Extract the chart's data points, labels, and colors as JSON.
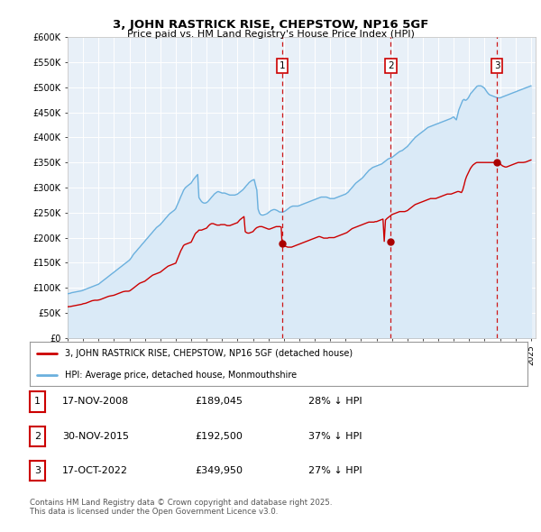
{
  "title": "3, JOHN RASTRICK RISE, CHEPSTOW, NP16 5GF",
  "subtitle": "Price paid vs. HM Land Registry's House Price Index (HPI)",
  "ylim": [
    0,
    600000
  ],
  "ytick_values": [
    0,
    50000,
    100000,
    150000,
    200000,
    250000,
    300000,
    350000,
    400000,
    450000,
    500000,
    550000,
    600000
  ],
  "hpi_color": "#6ab0de",
  "price_color": "#cc0000",
  "marker_box_color": "#cc0000",
  "shade_color": "#daeaf7",
  "plot_bg": "#e8f0f8",
  "grid_color": "#ffffff",
  "transactions": [
    {
      "x": 2008.88,
      "price": 189045,
      "label": "1"
    },
    {
      "x": 2015.92,
      "price": 192500,
      "label": "2"
    },
    {
      "x": 2022.79,
      "price": 349950,
      "label": "3"
    }
  ],
  "legend_line1": "3, JOHN RASTRICK RISE, CHEPSTOW, NP16 5GF (detached house)",
  "legend_line2": "HPI: Average price, detached house, Monmouthshire",
  "footer_line1": "Contains HM Land Registry data © Crown copyright and database right 2025.",
  "footer_line2": "This data is licensed under the Open Government Licence v3.0.",
  "table_rows": [
    [
      "1",
      "17-NOV-2008",
      "£189,045",
      "28% ↓ HPI"
    ],
    [
      "2",
      "30-NOV-2015",
      "£192,500",
      "37% ↓ HPI"
    ],
    [
      "3",
      "17-OCT-2022",
      "£349,950",
      "27% ↓ HPI"
    ]
  ],
  "hpi_x": [
    1995.0,
    1995.08,
    1995.17,
    1995.25,
    1995.33,
    1995.42,
    1995.5,
    1995.58,
    1995.67,
    1995.75,
    1995.83,
    1995.92,
    1996.0,
    1996.08,
    1996.17,
    1996.25,
    1996.33,
    1996.42,
    1996.5,
    1996.58,
    1996.67,
    1996.75,
    1996.83,
    1996.92,
    1997.0,
    1997.08,
    1997.17,
    1997.25,
    1997.33,
    1997.42,
    1997.5,
    1997.58,
    1997.67,
    1997.75,
    1997.83,
    1997.92,
    1998.0,
    1998.08,
    1998.17,
    1998.25,
    1998.33,
    1998.42,
    1998.5,
    1998.58,
    1998.67,
    1998.75,
    1998.83,
    1998.92,
    1999.0,
    1999.08,
    1999.17,
    1999.25,
    1999.33,
    1999.42,
    1999.5,
    1999.58,
    1999.67,
    1999.75,
    1999.83,
    1999.92,
    2000.0,
    2000.08,
    2000.17,
    2000.25,
    2000.33,
    2000.42,
    2000.5,
    2000.58,
    2000.67,
    2000.75,
    2000.83,
    2000.92,
    2001.0,
    2001.08,
    2001.17,
    2001.25,
    2001.33,
    2001.42,
    2001.5,
    2001.58,
    2001.67,
    2001.75,
    2001.83,
    2001.92,
    2002.0,
    2002.08,
    2002.17,
    2002.25,
    2002.33,
    2002.42,
    2002.5,
    2002.58,
    2002.67,
    2002.75,
    2002.83,
    2002.92,
    2003.0,
    2003.08,
    2003.17,
    2003.25,
    2003.33,
    2003.42,
    2003.5,
    2003.58,
    2003.67,
    2003.75,
    2003.83,
    2003.92,
    2004.0,
    2004.08,
    2004.17,
    2004.25,
    2004.33,
    2004.42,
    2004.5,
    2004.58,
    2004.67,
    2004.75,
    2004.83,
    2004.92,
    2005.0,
    2005.08,
    2005.17,
    2005.25,
    2005.33,
    2005.42,
    2005.5,
    2005.58,
    2005.67,
    2005.75,
    2005.83,
    2005.92,
    2006.0,
    2006.08,
    2006.17,
    2006.25,
    2006.33,
    2006.42,
    2006.5,
    2006.58,
    2006.67,
    2006.75,
    2006.83,
    2006.92,
    2007.0,
    2007.08,
    2007.17,
    2007.25,
    2007.33,
    2007.42,
    2007.5,
    2007.58,
    2007.67,
    2007.75,
    2007.83,
    2007.92,
    2008.0,
    2008.08,
    2008.17,
    2008.25,
    2008.33,
    2008.42,
    2008.5,
    2008.58,
    2008.67,
    2008.75,
    2008.83,
    2008.92,
    2009.0,
    2009.08,
    2009.17,
    2009.25,
    2009.33,
    2009.42,
    2009.5,
    2009.58,
    2009.67,
    2009.75,
    2009.83,
    2009.92,
    2010.0,
    2010.08,
    2010.17,
    2010.25,
    2010.33,
    2010.42,
    2010.5,
    2010.58,
    2010.67,
    2010.75,
    2010.83,
    2010.92,
    2011.0,
    2011.08,
    2011.17,
    2011.25,
    2011.33,
    2011.42,
    2011.5,
    2011.58,
    2011.67,
    2011.75,
    2011.83,
    2011.92,
    2012.0,
    2012.08,
    2012.17,
    2012.25,
    2012.33,
    2012.42,
    2012.5,
    2012.58,
    2012.67,
    2012.75,
    2012.83,
    2012.92,
    2013.0,
    2013.08,
    2013.17,
    2013.25,
    2013.33,
    2013.42,
    2013.5,
    2013.58,
    2013.67,
    2013.75,
    2013.83,
    2013.92,
    2014.0,
    2014.08,
    2014.17,
    2014.25,
    2014.33,
    2014.42,
    2014.5,
    2014.58,
    2014.67,
    2014.75,
    2014.83,
    2014.92,
    2015.0,
    2015.08,
    2015.17,
    2015.25,
    2015.33,
    2015.42,
    2015.5,
    2015.58,
    2015.67,
    2015.75,
    2015.83,
    2015.92,
    2016.0,
    2016.08,
    2016.17,
    2016.25,
    2016.33,
    2016.42,
    2016.5,
    2016.58,
    2016.67,
    2016.75,
    2016.83,
    2016.92,
    2017.0,
    2017.08,
    2017.17,
    2017.25,
    2017.33,
    2017.42,
    2017.5,
    2017.58,
    2017.67,
    2017.75,
    2017.83,
    2017.92,
    2018.0,
    2018.08,
    2018.17,
    2018.25,
    2018.33,
    2018.42,
    2018.5,
    2018.58,
    2018.67,
    2018.75,
    2018.83,
    2018.92,
    2019.0,
    2019.08,
    2019.17,
    2019.25,
    2019.33,
    2019.42,
    2019.5,
    2019.58,
    2019.67,
    2019.75,
    2019.83,
    2019.92,
    2020.0,
    2020.08,
    2020.17,
    2020.25,
    2020.33,
    2020.42,
    2020.5,
    2020.58,
    2020.67,
    2020.75,
    2020.83,
    2020.92,
    2021.0,
    2021.08,
    2021.17,
    2021.25,
    2021.33,
    2021.42,
    2021.5,
    2021.58,
    2021.67,
    2021.75,
    2021.83,
    2021.92,
    2022.0,
    2022.08,
    2022.17,
    2022.25,
    2022.33,
    2022.42,
    2022.5,
    2022.58,
    2022.67,
    2022.75,
    2022.83,
    2022.92,
    2023.0,
    2023.08,
    2023.17,
    2023.25,
    2023.33,
    2023.42,
    2023.5,
    2023.58,
    2023.67,
    2023.75,
    2023.83,
    2023.92,
    2024.0,
    2024.08,
    2024.17,
    2024.25,
    2024.33,
    2024.42,
    2024.5,
    2024.58,
    2024.67,
    2024.75,
    2024.83,
    2024.92,
    2025.0
  ],
  "hpi_y": [
    88000,
    88500,
    89000,
    90000,
    90500,
    91000,
    91500,
    92000,
    92500,
    93000,
    93500,
    94000,
    95000,
    96000,
    97000,
    98000,
    99000,
    100000,
    101000,
    102000,
    103000,
    104000,
    105000,
    106000,
    107000,
    109000,
    111000,
    113000,
    115000,
    117000,
    119000,
    121000,
    123000,
    125000,
    127000,
    129000,
    131000,
    133000,
    135000,
    137000,
    139000,
    141000,
    143000,
    145000,
    147000,
    149000,
    151000,
    153000,
    155000,
    158000,
    162000,
    166000,
    169000,
    172000,
    175000,
    178000,
    181000,
    184000,
    187000,
    190000,
    193000,
    196000,
    199000,
    202000,
    205000,
    208000,
    211000,
    214000,
    217000,
    220000,
    222000,
    224000,
    226000,
    229000,
    232000,
    235000,
    238000,
    241000,
    244000,
    247000,
    249000,
    251000,
    253000,
    255000,
    258000,
    264000,
    270000,
    276000,
    282000,
    288000,
    294000,
    298000,
    301000,
    303000,
    305000,
    307000,
    309000,
    313000,
    317000,
    320000,
    323000,
    326000,
    280000,
    276000,
    272000,
    270000,
    269000,
    269000,
    270000,
    272000,
    275000,
    278000,
    281000,
    284000,
    287000,
    289000,
    291000,
    292000,
    291000,
    290000,
    289000,
    289000,
    289000,
    288000,
    287000,
    286000,
    285000,
    285000,
    285000,
    285000,
    285000,
    286000,
    287000,
    289000,
    291000,
    293000,
    295000,
    298000,
    301000,
    304000,
    307000,
    310000,
    312000,
    314000,
    315000,
    316000,
    304000,
    295000,
    257000,
    249000,
    246000,
    245000,
    245000,
    246000,
    247000,
    248000,
    250000,
    252000,
    254000,
    255000,
    256000,
    256000,
    255000,
    254000,
    252000,
    251000,
    251000,
    251000,
    252000,
    253000,
    255000,
    257000,
    259000,
    261000,
    262000,
    263000,
    263000,
    263000,
    263000,
    263000,
    264000,
    265000,
    266000,
    267000,
    268000,
    269000,
    270000,
    271000,
    272000,
    273000,
    274000,
    275000,
    276000,
    277000,
    278000,
    279000,
    280000,
    281000,
    281000,
    281000,
    281000,
    281000,
    280000,
    279000,
    278000,
    278000,
    278000,
    278000,
    279000,
    280000,
    281000,
    282000,
    283000,
    284000,
    285000,
    286000,
    287000,
    289000,
    291000,
    294000,
    297000,
    300000,
    303000,
    306000,
    309000,
    311000,
    313000,
    315000,
    317000,
    319000,
    322000,
    325000,
    328000,
    331000,
    334000,
    336000,
    338000,
    340000,
    341000,
    342000,
    343000,
    344000,
    345000,
    346000,
    347000,
    349000,
    351000,
    353000,
    355000,
    357000,
    358000,
    359000,
    360000,
    362000,
    364000,
    366000,
    368000,
    370000,
    372000,
    373000,
    374000,
    376000,
    378000,
    380000,
    382000,
    385000,
    388000,
    391000,
    394000,
    397000,
    400000,
    402000,
    404000,
    406000,
    408000,
    410000,
    412000,
    414000,
    416000,
    418000,
    420000,
    421000,
    422000,
    423000,
    424000,
    425000,
    426000,
    427000,
    428000,
    429000,
    430000,
    431000,
    432000,
    433000,
    434000,
    435000,
    436000,
    437000,
    438000,
    440000,
    441000,
    438000,
    435000,
    445000,
    455000,
    462000,
    468000,
    474000,
    476000,
    474000,
    475000,
    478000,
    482000,
    487000,
    490000,
    493000,
    496000,
    499000,
    502000,
    503000,
    503000,
    503000,
    502000,
    500000,
    498000,
    494000,
    490000,
    487000,
    485000,
    484000,
    483000,
    482000,
    481000,
    480000,
    479000,
    479000,
    479000,
    480000,
    481000,
    482000,
    483000,
    484000,
    485000,
    486000,
    487000,
    488000,
    489000,
    490000,
    491000,
    492000,
    493000,
    494000,
    495000,
    496000,
    497000,
    498000,
    499000,
    500000,
    501000,
    502000,
    503000
  ],
  "price_x": [
    1995.0,
    1995.08,
    1995.17,
    1995.25,
    1995.33,
    1995.42,
    1995.5,
    1995.58,
    1995.67,
    1995.75,
    1995.83,
    1995.92,
    1996.0,
    1996.08,
    1996.17,
    1996.25,
    1996.33,
    1996.42,
    1996.5,
    1996.58,
    1996.67,
    1996.75,
    1996.83,
    1996.92,
    1997.0,
    1997.08,
    1997.17,
    1997.25,
    1997.33,
    1997.42,
    1997.5,
    1997.58,
    1997.67,
    1997.75,
    1997.83,
    1997.92,
    1998.0,
    1998.08,
    1998.17,
    1998.25,
    1998.33,
    1998.42,
    1998.5,
    1998.58,
    1998.67,
    1998.75,
    1998.83,
    1998.92,
    1999.0,
    1999.08,
    1999.17,
    1999.25,
    1999.33,
    1999.42,
    1999.5,
    1999.58,
    1999.67,
    1999.75,
    1999.83,
    1999.92,
    2000.0,
    2000.08,
    2000.17,
    2000.25,
    2000.33,
    2000.42,
    2000.5,
    2000.58,
    2000.67,
    2000.75,
    2000.83,
    2000.92,
    2001.0,
    2001.08,
    2001.17,
    2001.25,
    2001.33,
    2001.42,
    2001.5,
    2001.58,
    2001.67,
    2001.75,
    2001.83,
    2001.92,
    2002.0,
    2002.08,
    2002.17,
    2002.25,
    2002.33,
    2002.42,
    2002.5,
    2002.58,
    2002.67,
    2002.75,
    2002.83,
    2002.92,
    2003.0,
    2003.08,
    2003.17,
    2003.25,
    2003.33,
    2003.42,
    2003.5,
    2003.58,
    2003.67,
    2003.75,
    2003.83,
    2003.92,
    2004.0,
    2004.08,
    2004.17,
    2004.25,
    2004.33,
    2004.42,
    2004.5,
    2004.58,
    2004.67,
    2004.75,
    2004.83,
    2004.92,
    2005.0,
    2005.08,
    2005.17,
    2005.25,
    2005.33,
    2005.42,
    2005.5,
    2005.58,
    2005.67,
    2005.75,
    2005.83,
    2005.92,
    2006.0,
    2006.08,
    2006.17,
    2006.25,
    2006.33,
    2006.42,
    2006.5,
    2006.58,
    2006.67,
    2006.75,
    2006.83,
    2006.92,
    2007.0,
    2007.08,
    2007.17,
    2007.25,
    2007.33,
    2007.42,
    2007.5,
    2007.58,
    2007.67,
    2007.75,
    2007.83,
    2007.92,
    2008.0,
    2008.08,
    2008.17,
    2008.25,
    2008.33,
    2008.42,
    2008.5,
    2008.58,
    2008.67,
    2008.75,
    2008.83,
    2008.88,
    2009.0,
    2009.08,
    2009.17,
    2009.25,
    2009.33,
    2009.42,
    2009.5,
    2009.58,
    2009.67,
    2009.75,
    2009.83,
    2009.92,
    2010.0,
    2010.08,
    2010.17,
    2010.25,
    2010.33,
    2010.42,
    2010.5,
    2010.58,
    2010.67,
    2010.75,
    2010.83,
    2010.92,
    2011.0,
    2011.08,
    2011.17,
    2011.25,
    2011.33,
    2011.42,
    2011.5,
    2011.58,
    2011.67,
    2011.75,
    2011.83,
    2011.92,
    2012.0,
    2012.08,
    2012.17,
    2012.25,
    2012.33,
    2012.42,
    2012.5,
    2012.58,
    2012.67,
    2012.75,
    2012.83,
    2012.92,
    2013.0,
    2013.08,
    2013.17,
    2013.25,
    2013.33,
    2013.42,
    2013.5,
    2013.58,
    2013.67,
    2013.75,
    2013.83,
    2013.92,
    2014.0,
    2014.08,
    2014.17,
    2014.25,
    2014.33,
    2014.42,
    2014.5,
    2014.58,
    2014.67,
    2014.75,
    2014.83,
    2014.92,
    2015.0,
    2015.08,
    2015.17,
    2015.25,
    2015.33,
    2015.42,
    2015.5,
    2015.58,
    2015.67,
    2015.75,
    2015.83,
    2015.92,
    2016.0,
    2016.08,
    2016.17,
    2016.25,
    2016.33,
    2016.42,
    2016.5,
    2016.58,
    2016.67,
    2016.75,
    2016.83,
    2016.92,
    2017.0,
    2017.08,
    2017.17,
    2017.25,
    2017.33,
    2017.42,
    2017.5,
    2017.58,
    2017.67,
    2017.75,
    2017.83,
    2017.92,
    2018.0,
    2018.08,
    2018.17,
    2018.25,
    2018.33,
    2018.42,
    2018.5,
    2018.58,
    2018.67,
    2018.75,
    2018.83,
    2018.92,
    2019.0,
    2019.08,
    2019.17,
    2019.25,
    2019.33,
    2019.42,
    2019.5,
    2019.58,
    2019.67,
    2019.75,
    2019.83,
    2019.92,
    2020.0,
    2020.08,
    2020.17,
    2020.25,
    2020.33,
    2020.42,
    2020.5,
    2020.58,
    2020.67,
    2020.75,
    2020.83,
    2020.92,
    2021.0,
    2021.08,
    2021.17,
    2021.25,
    2021.33,
    2021.42,
    2021.5,
    2021.58,
    2021.67,
    2021.75,
    2021.83,
    2021.92,
    2022.0,
    2022.08,
    2022.17,
    2022.25,
    2022.33,
    2022.42,
    2022.5,
    2022.58,
    2022.67,
    2022.75,
    2022.79,
    2023.0,
    2023.08,
    2023.17,
    2023.25,
    2023.33,
    2023.42,
    2023.5,
    2023.58,
    2023.67,
    2023.75,
    2023.83,
    2023.92,
    2024.0,
    2024.08,
    2024.17,
    2024.25,
    2024.33,
    2024.42,
    2024.5,
    2024.58,
    2024.67,
    2024.75,
    2024.83,
    2024.92,
    2025.0
  ],
  "price_y": [
    62000,
    62200,
    62500,
    63000,
    63500,
    64000,
    64500,
    65000,
    65500,
    66000,
    66500,
    67000,
    68000,
    68500,
    69000,
    70000,
    71000,
    72000,
    73000,
    74000,
    74500,
    75000,
    75000,
    75000,
    75500,
    76000,
    77000,
    78000,
    79000,
    80000,
    81000,
    82000,
    83000,
    83500,
    84000,
    84500,
    85000,
    86000,
    87000,
    88000,
    89000,
    90000,
    91000,
    92000,
    92500,
    93000,
    93000,
    93000,
    93500,
    95000,
    97000,
    99000,
    101000,
    103000,
    105000,
    107000,
    109000,
    110000,
    111000,
    112000,
    113000,
    115000,
    117000,
    119000,
    121000,
    123000,
    125000,
    126000,
    127000,
    128000,
    129000,
    130000,
    131000,
    133000,
    135000,
    137000,
    139000,
    141000,
    143000,
    144000,
    145000,
    146000,
    147000,
    148000,
    149000,
    155000,
    162000,
    168000,
    174000,
    179000,
    184000,
    186000,
    187000,
    188000,
    189000,
    190000,
    191000,
    196000,
    202000,
    207000,
    210000,
    212000,
    215000,
    215000,
    215000,
    216000,
    217000,
    218000,
    219000,
    222000,
    225000,
    227000,
    228000,
    228000,
    227000,
    226000,
    225000,
    225000,
    225000,
    226000,
    226000,
    226000,
    226000,
    225000,
    224000,
    224000,
    224000,
    225000,
    226000,
    227000,
    228000,
    229000,
    230000,
    233000,
    236000,
    238000,
    240000,
    242000,
    212000,
    210000,
    209000,
    209000,
    210000,
    211000,
    212000,
    215000,
    218000,
    220000,
    221000,
    222000,
    222000,
    222000,
    221000,
    220000,
    219000,
    218000,
    217000,
    217000,
    218000,
    219000,
    220000,
    221000,
    222000,
    222000,
    222000,
    222000,
    221000,
    189045,
    185000,
    183000,
    182000,
    181000,
    181000,
    181000,
    181000,
    182000,
    183000,
    184000,
    185000,
    186000,
    187000,
    188000,
    189000,
    190000,
    191000,
    192000,
    193000,
    194000,
    195000,
    196000,
    197000,
    198000,
    199000,
    200000,
    201000,
    202000,
    202000,
    201000,
    200000,
    199000,
    199000,
    199000,
    199000,
    200000,
    200000,
    200000,
    200000,
    200000,
    201000,
    202000,
    203000,
    204000,
    205000,
    206000,
    207000,
    208000,
    209000,
    210000,
    212000,
    214000,
    216000,
    218000,
    219000,
    220000,
    221000,
    222000,
    223000,
    224000,
    225000,
    226000,
    227000,
    228000,
    229000,
    230000,
    231000,
    231000,
    231000,
    231000,
    231000,
    232000,
    232000,
    233000,
    234000,
    235000,
    236000,
    237000,
    192500,
    235000,
    238000,
    240000,
    242000,
    244000,
    246000,
    247000,
    248000,
    249000,
    250000,
    251000,
    252000,
    252000,
    252000,
    252000,
    252000,
    253000,
    254000,
    256000,
    258000,
    260000,
    262000,
    264000,
    266000,
    267000,
    268000,
    269000,
    270000,
    271000,
    272000,
    273000,
    274000,
    275000,
    276000,
    277000,
    278000,
    278000,
    278000,
    278000,
    278000,
    279000,
    280000,
    281000,
    282000,
    283000,
    284000,
    285000,
    286000,
    287000,
    287000,
    287000,
    287000,
    288000,
    289000,
    290000,
    291000,
    292000,
    292000,
    291000,
    290000,
    295000,
    305000,
    315000,
    322000,
    328000,
    333000,
    338000,
    342000,
    345000,
    347000,
    349000,
    350000,
    350000,
    350000,
    350000,
    350000,
    350000,
    350000,
    350000,
    350000,
    349950,
    350000,
    350000,
    350000,
    350000,
    350000,
    350000,
    349950,
    348000,
    345000,
    343000,
    342000,
    341000,
    341000,
    342000,
    343000,
    344000,
    345000,
    346000,
    347000,
    348000,
    349000,
    350000,
    350000,
    350000,
    350000,
    350000,
    350500,
    351000,
    352000,
    353000,
    354000,
    355000
  ]
}
